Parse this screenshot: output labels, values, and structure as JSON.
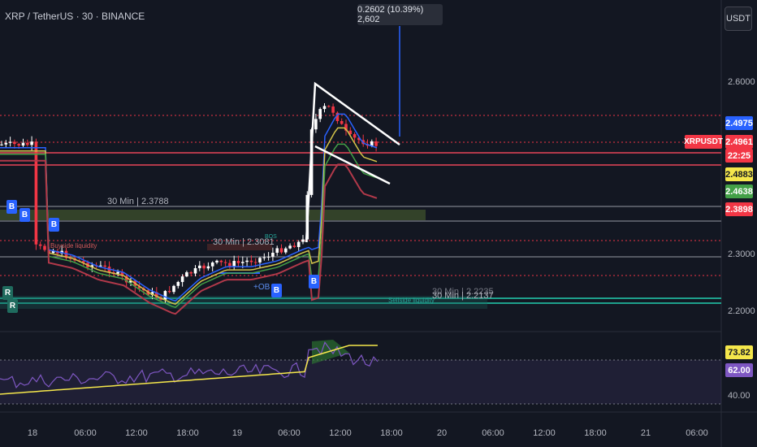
{
  "header": {
    "title": "XRP / TetherUS · 30 · BINANCE"
  },
  "currency_button": "USDT",
  "measure_tooltip": "0.2602 (10.39%) 2,602",
  "symbol_tag": "XRPUSDT",
  "price_badges": [
    {
      "text": "2.4975",
      "color": "#2962ff"
    },
    {
      "text": "2.4961",
      "color": "#f23645"
    },
    {
      "text": "22:25",
      "color": "#f23645"
    },
    {
      "text": "2.4883",
      "color": "#f5e74b"
    },
    {
      "text": "2.4638",
      "color": "#43a047"
    },
    {
      "text": "2.3898",
      "color": "#f23645"
    },
    {
      "text": "73.82",
      "color": "#f5e74b"
    },
    {
      "text": "62.00",
      "color": "#7e57c2"
    }
  ],
  "y_axis_labels": [
    "2.6000",
    "2.3000",
    "2.2000",
    "40.00"
  ],
  "x_axis_labels": [
    "18",
    "06:00",
    "12:00",
    "18:00",
    "19",
    "06:00",
    "12:00",
    "18:00",
    "20",
    "06:00",
    "12:00",
    "18:00",
    "21",
    "06:00"
  ],
  "annotations": {
    "level_1": "30 Min | 2.3788",
    "level_2": "30 Min | 2.3081",
    "level_3": "30 Min | 2.2235",
    "level_4": "30 Min | 2.2137",
    "ob_label": "+OB",
    "sellside": "Sellside liquidity",
    "buyside": "Buyside liquidity",
    "bos": "BOS"
  },
  "signals": [
    "B",
    "B",
    "B",
    "B",
    "B",
    "R",
    "R"
  ],
  "chart_data": {
    "type": "candlestick",
    "symbol": "XRPUSDT",
    "interval": "30",
    "exchange": "BINANCE",
    "ylim": [
      2.17,
      2.67
    ],
    "last_price": 2.4961,
    "rsi": {
      "value": 62.0,
      "ma": 73.82,
      "upper_band": 70,
      "lower_band": 30
    },
    "levels": [
      2.3788,
      2.3081,
      2.2235,
      2.2137
    ],
    "close_path": [
      {
        "t": "18 00:00",
        "c": 2.32
      },
      {
        "t": "18 03:00",
        "c": 2.31
      },
      {
        "t": "18 06:00",
        "c": 2.29
      },
      {
        "t": "18 09:00",
        "c": 2.28
      },
      {
        "t": "18 12:00",
        "c": 2.25
      },
      {
        "t": "18 15:00",
        "c": 2.23
      },
      {
        "t": "18 18:00",
        "c": 2.27
      },
      {
        "t": "18 21:00",
        "c": 2.29
      },
      {
        "t": "19 00:00",
        "c": 2.29
      },
      {
        "t": "19 03:00",
        "c": 2.3
      },
      {
        "t": "19 06:00",
        "c": 2.32
      },
      {
        "t": "19 08:00",
        "c": 2.33
      },
      {
        "t": "19 08:30",
        "c": 2.52
      },
      {
        "t": "19 10:00",
        "c": 2.56
      },
      {
        "t": "19 11:00",
        "c": 2.56
      },
      {
        "t": "19 13:00",
        "c": 2.51
      },
      {
        "t": "19 15:00",
        "c": 2.5
      },
      {
        "t": "19 16:00",
        "c": 2.496
      }
    ]
  }
}
